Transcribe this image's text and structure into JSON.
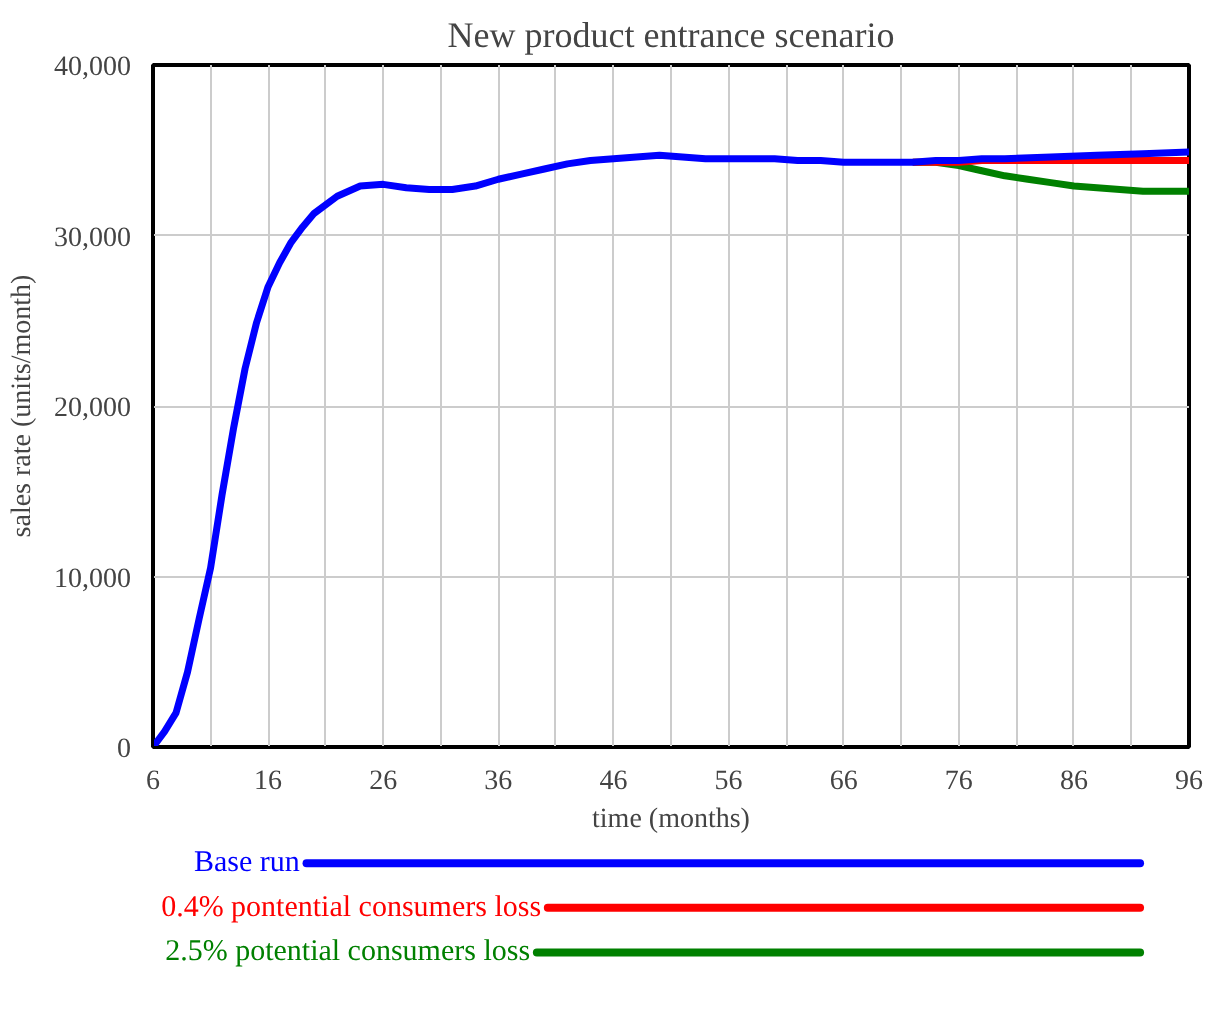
{
  "chart_data": {
    "type": "line",
    "title": "New product entrance scenario",
    "xlabel": "time (months)",
    "ylabel": "sales rate (units/month)",
    "x": [
      6,
      7,
      8,
      9,
      10,
      11,
      12,
      13,
      14,
      15,
      16,
      17,
      18,
      19,
      20,
      22,
      24,
      26,
      28,
      30,
      32,
      34,
      36,
      38,
      40,
      42,
      44,
      46,
      48,
      50,
      52,
      54,
      56,
      58,
      60,
      62,
      64,
      66,
      68,
      70,
      72,
      74,
      76,
      78,
      80,
      84,
      88,
      92,
      96
    ],
    "series": [
      {
        "name": "2.5% potential consumers loss",
        "color": "#008000",
        "x": [
          72,
          74,
          76,
          78,
          80,
          82,
          84,
          86,
          88,
          90,
          92,
          96
        ],
        "values": [
          34300,
          34300,
          34100,
          33800,
          33500,
          33300,
          33100,
          32900,
          32800,
          32700,
          32600,
          32600
        ]
      },
      {
        "name": "0.4% pontential consumers loss",
        "color": "#ff0000",
        "x": [
          72,
          74,
          76,
          78,
          80,
          84,
          88,
          92,
          96
        ],
        "values": [
          34300,
          34300,
          34300,
          34400,
          34400,
          34400,
          34400,
          34400,
          34400
        ]
      },
      {
        "name": "Base run",
        "color": "#0000ff",
        "values": [
          0,
          900,
          2000,
          4400,
          7500,
          10500,
          14800,
          18700,
          22200,
          24900,
          27000,
          28400,
          29600,
          30500,
          31300,
          32300,
          32900,
          33000,
          32800,
          32700,
          32700,
          32900,
          33300,
          33600,
          33900,
          34200,
          34400,
          34500,
          34600,
          34700,
          34600,
          34500,
          34500,
          34500,
          34500,
          34400,
          34400,
          34300,
          34300,
          34300,
          34300,
          34400,
          34400,
          34500,
          34500,
          34600,
          34700,
          34800,
          34900
        ]
      }
    ],
    "xlim": [
      6,
      96
    ],
    "ylim": [
      0,
      40000
    ],
    "xticks": [
      6,
      {
        "value": 11,
        "label": null
      },
      16,
      {
        "value": 21,
        "label": null
      },
      26,
      {
        "value": 31,
        "label": null
      },
      36,
      {
        "value": 41,
        "label": null
      },
      46,
      {
        "value": 51,
        "label": null
      },
      56,
      {
        "value": 61,
        "label": null
      },
      66,
      {
        "value": 71,
        "label": null
      },
      76,
      {
        "value": 81,
        "label": null
      },
      86,
      {
        "value": 91,
        "label": null
      },
      96
    ],
    "yticks": [
      {
        "value": 0,
        "label": "0"
      },
      {
        "value": 10000,
        "label": "10,000"
      },
      {
        "value": 20000,
        "label": "20,000"
      },
      {
        "value": 30000,
        "label": "30,000"
      },
      {
        "value": 40000,
        "label": "40,000"
      }
    ],
    "grid": true,
    "legend": "bottom",
    "line_style": "solid"
  }
}
